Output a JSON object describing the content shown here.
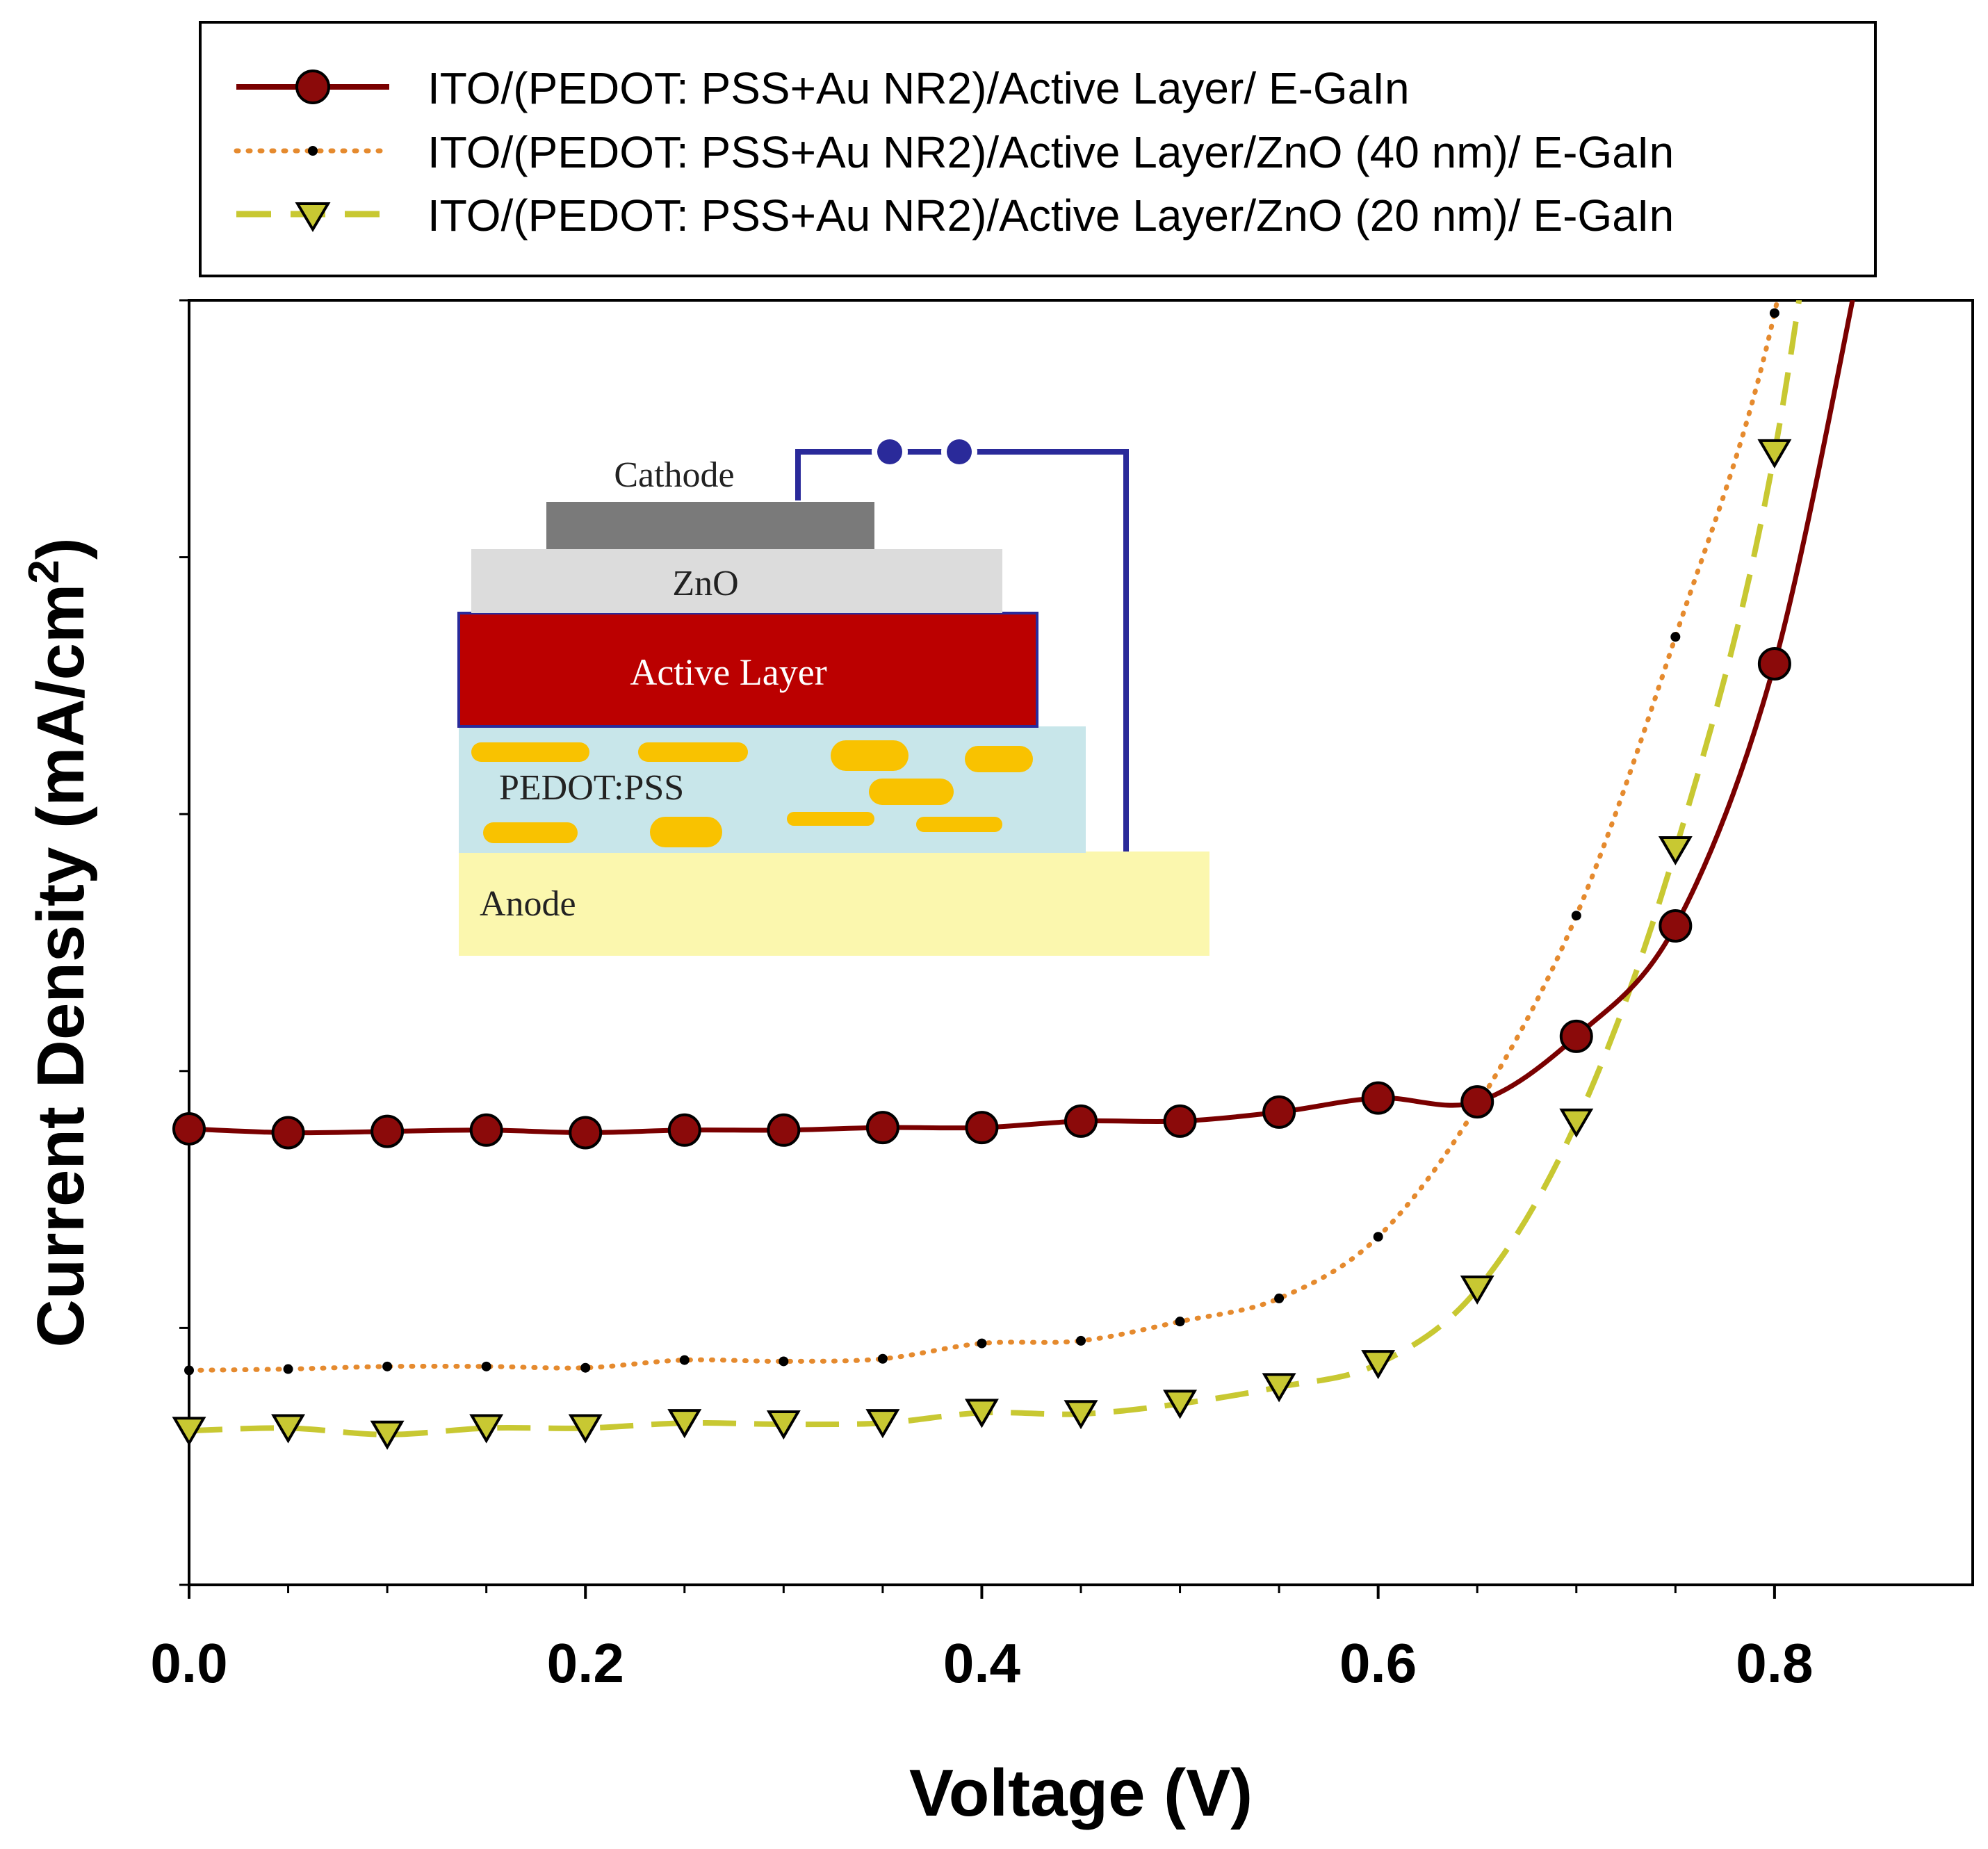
{
  "chart_data": {
    "type": "line",
    "title": "",
    "xlabel": "Voltage (V)",
    "ylabel_main": "Current Density (mA/cm",
    "ylabel_sup": "2",
    "ylabel_close": ")",
    "xlim": [
      0.0,
      0.9
    ],
    "ylim": [
      0,
      100
    ],
    "x_ticks": [
      0.0,
      0.2,
      0.4,
      0.6,
      0.8
    ],
    "x_tick_labels": [
      "0.0",
      "0.2",
      "0.4",
      "0.6",
      "0.8"
    ],
    "y_tick_labels_shown": false,
    "grid": false,
    "legend_position": "top",
    "x": [
      0.0,
      0.05,
      0.1,
      0.15,
      0.2,
      0.25,
      0.3,
      0.35,
      0.4,
      0.45,
      0.5,
      0.55,
      0.6,
      0.65,
      0.7,
      0.75,
      0.8
    ],
    "series": [
      {
        "name": "ITO/(PEDOT: PSS+Au NR2)/Active Layer/ E-GaIn",
        "color": "#7a0000",
        "marker_fill": "#8b0a0a",
        "line_style": "solid",
        "marker": "circle",
        "values": [
          35.5,
          35.2,
          35.3,
          35.4,
          35.2,
          35.4,
          35.4,
          35.6,
          35.6,
          36.1,
          36.1,
          36.8,
          37.9,
          37.6,
          42.7,
          51.3,
          71.7
        ]
      },
      {
        "name": "ITO/(PEDOT: PSS+Au NR2)/Active Layer/ZnO (40 nm)/ E-GaIn",
        "color": "#e58a2e",
        "marker_fill": "#000000",
        "line_style": "dotted",
        "marker": "dot",
        "values": [
          16.7,
          16.8,
          17.0,
          17.0,
          16.9,
          17.5,
          17.4,
          17.6,
          18.8,
          19.0,
          20.5,
          22.3,
          27.1,
          37.3,
          52.1,
          73.8,
          99.0
        ]
      },
      {
        "name": "ITO/(PEDOT: PSS+Au NR2)/Active Layer/ZnO (20 nm)/ E-GaIn",
        "color": "#c8c832",
        "marker_fill": "#c8c832",
        "line_style": "dashed",
        "marker": "triangle-down",
        "values": [
          12.0,
          12.2,
          11.7,
          12.2,
          12.2,
          12.6,
          12.5,
          12.6,
          13.4,
          13.3,
          14.1,
          15.4,
          17.2,
          23.0,
          36.0,
          57.2,
          88.1
        ]
      }
    ]
  },
  "inset": {
    "cathode_label": "Cathode",
    "zno_label": "ZnO",
    "active_label": "Active Layer",
    "pedot_label": "PEDOT:PSS",
    "anode_label": "Anode"
  }
}
